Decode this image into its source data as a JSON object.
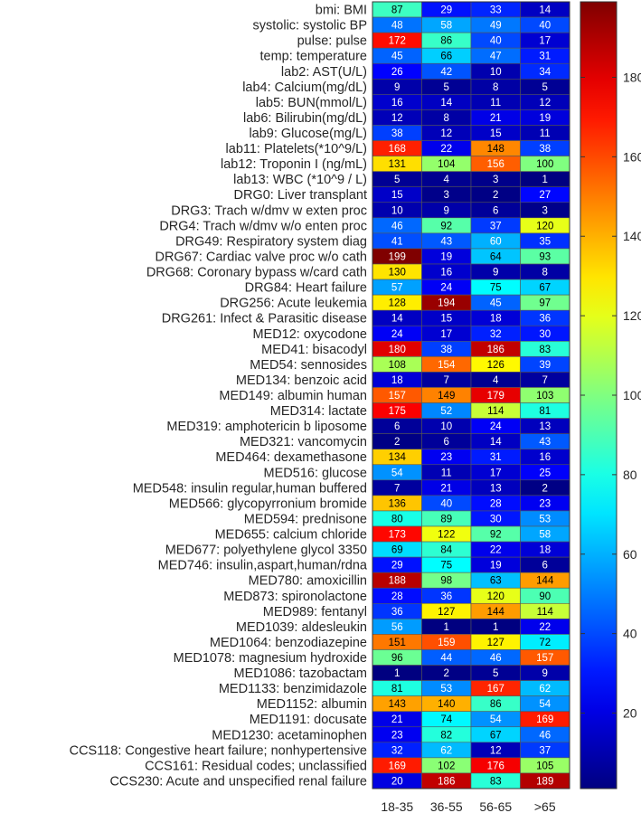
{
  "chart_data": {
    "type": "heatmap",
    "title": "",
    "xlabel": "",
    "ylabel": "",
    "columns": [
      "18-35",
      "36-55",
      "56-65",
      ">65"
    ],
    "rows": [
      "bmi: BMI",
      "systolic: systolic BP",
      "pulse: pulse",
      "temp: temperature",
      "lab2: AST(U/L)",
      "lab4: Calcium(mg/dL)",
      "lab5: BUN(mmol/L)",
      "lab6: Bilirubin(mg/dL)",
      "lab9: Glucose(mg/L)",
      "lab11: Platelets(*10^9/L)",
      "lab12: Troponin I (ng/mL)",
      "lab13: WBC (*10^9 / L)",
      "DRG0: Liver transplant",
      "DRG3: Trach w/dmv w exten proc",
      "DRG4: Trach w/dmv w/o enten proc",
      "DRG49: Respiratory system diag",
      "DRG67: Cardiac valve proc w/o cath",
      "DRG68: Coronary bypass w/card cath",
      "DRG84: Heart failure",
      "DRG256: Acute leukemia",
      "DRG261: Infect & Parasitic disease",
      "MED12: oxycodone",
      "MED41: bisacodyl",
      "MED54: sennosides",
      "MED134: benzoic acid",
      "MED149: albumin human",
      "MED314: lactate",
      "MED319: amphotericin b liposome",
      "MED321: vancomycin",
      "MED464: dexamethasone",
      "MED516: glucose",
      "MED548: insulin regular,human buffered",
      "MED566: glycopyrronium bromide",
      "MED594: prednisone",
      "MED655: calcium chloride",
      "MED677: polyethylene glycol 3350",
      "MED746: insulin,aspart,human/rdna",
      "MED780: amoxicillin",
      "MED873: spironolactone",
      "MED989: fentanyl",
      "MED1039: aldesleukin",
      "MED1064: benzodiazepine",
      "MED1078: magnesium hydroxide",
      "MED1086: tazobactam",
      "MED1133: benzimidazole",
      "MED1152: albumin",
      "MED1191: docusate",
      "MED1230: acetaminophen",
      "CCS118: Congestive heart failure; nonhypertensive",
      "CCS161: Residual codes; unclassified",
      "CCS230: Acute and unspecified renal failure"
    ],
    "values": [
      [
        87,
        29,
        33,
        14
      ],
      [
        48,
        58,
        49,
        40
      ],
      [
        172,
        86,
        40,
        17
      ],
      [
        45,
        66,
        47,
        31
      ],
      [
        26,
        42,
        10,
        34
      ],
      [
        9,
        5,
        8,
        5
      ],
      [
        16,
        14,
        11,
        12
      ],
      [
        12,
        8,
        21,
        19
      ],
      [
        38,
        12,
        15,
        11
      ],
      [
        168,
        22,
        148,
        38
      ],
      [
        131,
        104,
        156,
        100
      ],
      [
        5,
        4,
        3,
        1
      ],
      [
        15,
        3,
        2,
        27
      ],
      [
        10,
        9,
        6,
        3
      ],
      [
        46,
        92,
        37,
        120
      ],
      [
        41,
        43,
        60,
        35
      ],
      [
        199,
        19,
        64,
        93
      ],
      [
        130,
        16,
        9,
        8
      ],
      [
        57,
        24,
        75,
        67
      ],
      [
        128,
        194,
        45,
        97
      ],
      [
        14,
        15,
        18,
        36
      ],
      [
        24,
        17,
        32,
        30
      ],
      [
        180,
        38,
        186,
        83
      ],
      [
        108,
        154,
        126,
        39
      ],
      [
        18,
        7,
        4,
        7
      ],
      [
        157,
        149,
        179,
        103
      ],
      [
        175,
        52,
        114,
        81
      ],
      [
        6,
        10,
        24,
        13
      ],
      [
        2,
        6,
        14,
        43
      ],
      [
        134,
        23,
        31,
        16
      ],
      [
        54,
        11,
        17,
        25
      ],
      [
        7,
        21,
        13,
        2
      ],
      [
        136,
        40,
        28,
        23
      ],
      [
        80,
        89,
        30,
        53
      ],
      [
        173,
        122,
        92,
        58
      ],
      [
        69,
        84,
        22,
        18
      ],
      [
        29,
        75,
        19,
        6
      ],
      [
        188,
        98,
        63,
        144
      ],
      [
        28,
        36,
        120,
        90
      ],
      [
        36,
        127,
        144,
        114
      ],
      [
        56,
        1,
        1,
        22
      ],
      [
        151,
        159,
        127,
        72
      ],
      [
        96,
        44,
        46,
        157
      ],
      [
        1,
        2,
        5,
        9
      ],
      [
        81,
        53,
        167,
        62
      ],
      [
        143,
        140,
        86,
        54
      ],
      [
        21,
        74,
        54,
        169
      ],
      [
        23,
        82,
        67,
        46
      ],
      [
        32,
        62,
        12,
        37
      ],
      [
        169,
        102,
        176,
        105
      ],
      [
        20,
        186,
        83,
        189
      ]
    ],
    "colormap": "jet",
    "clim": [
      1,
      199
    ],
    "colorbar": {
      "ticks": [
        20,
        40,
        60,
        80,
        100,
        120,
        140,
        160,
        180
      ],
      "placement": "right"
    }
  }
}
